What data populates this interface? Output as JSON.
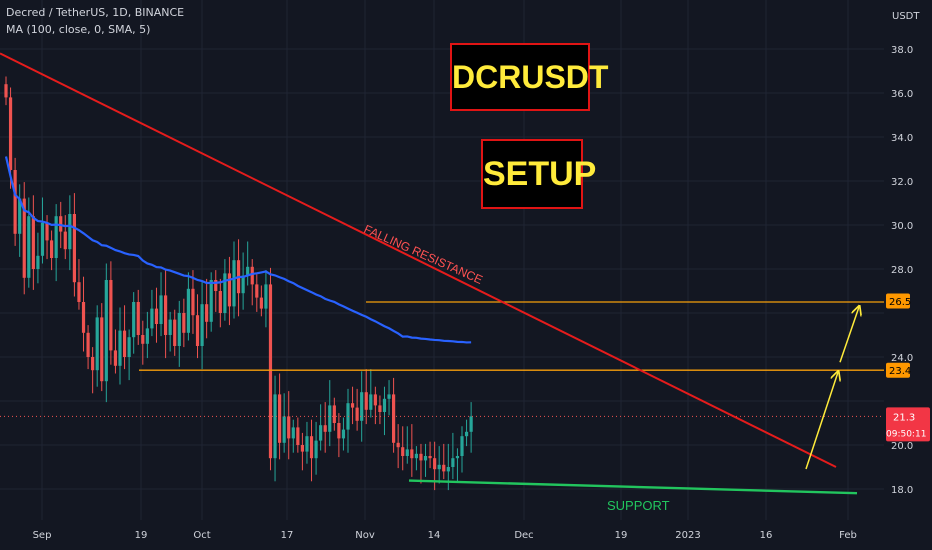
{
  "header": {
    "symbol": "Decred / TetherUS, 1D, BINANCE",
    "indicator": "MA (100, close, 0, SMA, 5)"
  },
  "annotations": {
    "title_box": "DCRUSDT",
    "setup_box": "SETUP",
    "resistance_label": "FALLING RESISTANCE",
    "support_label": "SUPPORT"
  },
  "colors": {
    "background": "#131722",
    "up": "#26a69a",
    "down": "#ef5350",
    "ma": "#2962ff",
    "resistance": "#e51c1c",
    "support": "#22c55e",
    "levels": "#f59e0b",
    "arrows": "#ffeb3b"
  },
  "chart_data": {
    "type": "candlestick",
    "y_axis": {
      "unit": "USDT",
      "ticks": [
        18.0,
        20.0,
        22.0,
        24.0,
        26.0,
        28.0,
        30.0,
        32.0,
        34.0,
        36.0,
        38.0
      ],
      "range": [
        17.0,
        39.6
      ]
    },
    "x_axis": {
      "ticks": [
        "Sep",
        "19",
        "Oct",
        "17",
        "Nov",
        "14",
        "Dec",
        "19",
        "2023",
        "16",
        "Feb"
      ]
    },
    "price_labels": {
      "level_high": "26.5",
      "level_low": "23.4",
      "last_price": "21.3",
      "countdown": "09:50:11"
    },
    "levels": [
      26.5,
      23.4
    ],
    "last_price": 21.3,
    "falling_resistance": {
      "start": [
        "Sep",
        37.8
      ],
      "end": [
        "Feb",
        19.0
      ]
    },
    "support": {
      "start": [
        "14",
        18.2
      ],
      "end": [
        "Feb",
        17.9
      ]
    },
    "projection": [
      [
        20.0,
        23.4
      ],
      [
        23.4,
        26.5
      ]
    ],
    "close_series": [
      35.8,
      32.5,
      29.6,
      31.2,
      27.6,
      30.4,
      28.0,
      28.6,
      30.1,
      29.3,
      28.5,
      30.4,
      29.7,
      28.9,
      30.5,
      27.4,
      26.5,
      25.1,
      24.0,
      23.4,
      25.8,
      22.9,
      27.5,
      24.3,
      23.6,
      25.2,
      24.0,
      24.9,
      26.5,
      25.0,
      24.6,
      25.3,
      26.2,
      25.5,
      26.8,
      25.0,
      25.7,
      24.5,
      26.0,
      25.1,
      27.1,
      25.9,
      24.5,
      26.4,
      25.6,
      27.5,
      27.0,
      26.0,
      27.8,
      26.3,
      28.4,
      26.9,
      27.7,
      28.1,
      27.3,
      26.7,
      26.2,
      27.3,
      19.4,
      22.3,
      20.1,
      21.3,
      20.3,
      20.8,
      20.0,
      19.7,
      20.4,
      19.4,
      20.2,
      20.9,
      20.6,
      21.8,
      21.0,
      20.3,
      20.7,
      21.9,
      21.7,
      21.1,
      22.4,
      21.6,
      22.3,
      21.8,
      21.5,
      22.1,
      22.3,
      20.1,
      19.9,
      19.5,
      19.8,
      19.4,
      19.6,
      19.3,
      19.5,
      19.4,
      18.9,
      19.1,
      18.8,
      19.0,
      19.4,
      19.5,
      20.4,
      20.6,
      21.3
    ]
  }
}
